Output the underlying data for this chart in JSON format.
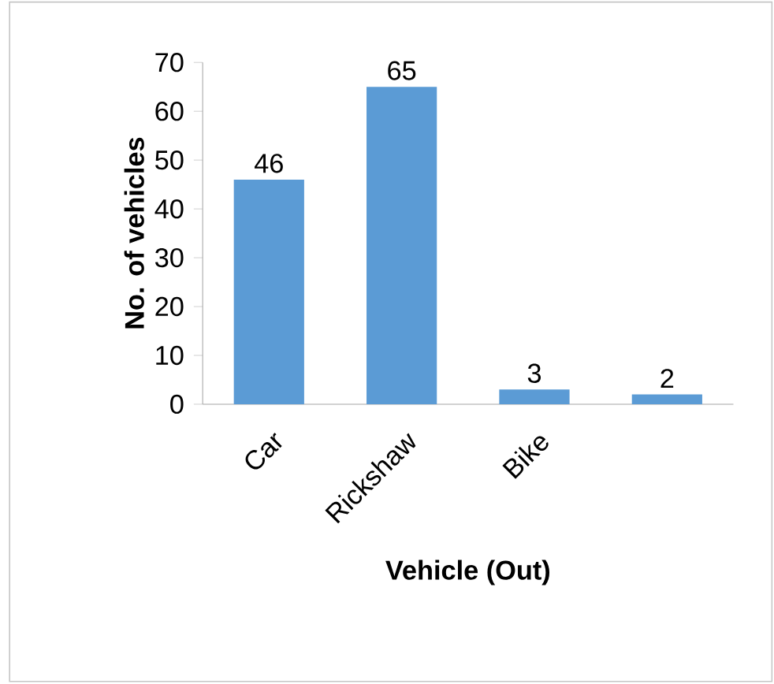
{
  "chart_data": {
    "type": "bar",
    "categories": [
      "Car",
      "Rickshaw",
      "Bike",
      null
    ],
    "values": [
      46,
      65,
      3,
      2
    ],
    "color": "#5b9bd5",
    "ylim": [
      0,
      70
    ],
    "yticks": [
      0,
      10,
      20,
      30,
      40,
      50,
      60,
      70
    ],
    "ylabel": "No. of vehicles",
    "xlabel": "Vehicle (Out)",
    "data_labels": true,
    "grid": false
  }
}
